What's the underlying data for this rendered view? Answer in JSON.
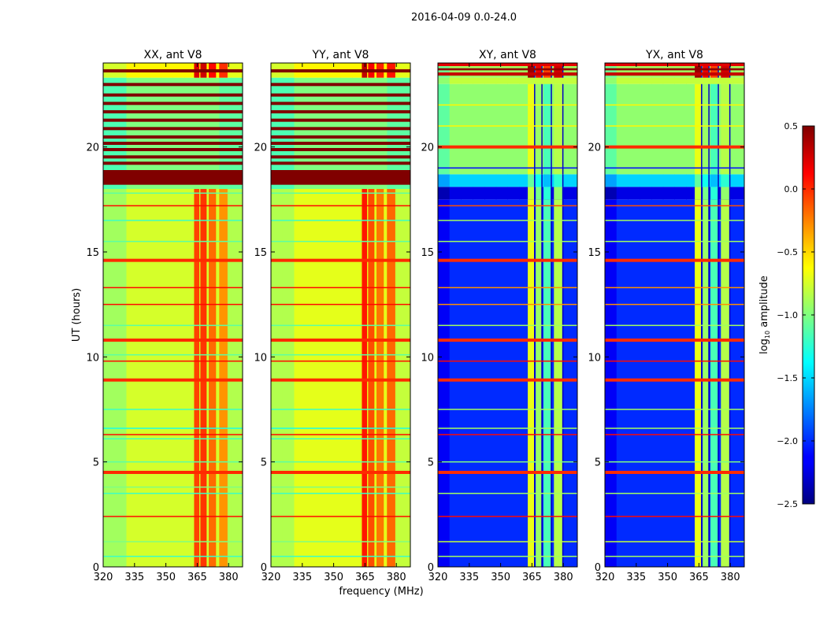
{
  "chart_data": {
    "type": "heatmap",
    "title": "2016-04-09 0.0-24.0",
    "xlabel": "frequency (MHz)",
    "ylabel": "UT (hours)",
    "xlim": [
      320,
      386.7
    ],
    "ylim": [
      0,
      24
    ],
    "xticks": [
      "320",
      "335",
      "350",
      "365",
      "380"
    ],
    "xtick_values": [
      320,
      335,
      350,
      365,
      380
    ],
    "yticks": [
      "0",
      "5",
      "10",
      "15",
      "20"
    ],
    "ytick_values": [
      0,
      5,
      10,
      15,
      20
    ],
    "colorbar": {
      "label_prefix": "log",
      "label_sub": "10",
      "label_suffix": " amplitude",
      "range": [
        -2.5,
        0.5
      ],
      "ticks": [
        "0.5",
        "0.0",
        "−0.5",
        "−1.0",
        "−1.5",
        "−2.0",
        "−2.5"
      ],
      "tick_values": [
        0.5,
        0.0,
        -0.5,
        -1.0,
        -1.5,
        -2.0,
        -2.5
      ],
      "colormap": "jet"
    },
    "panels": [
      {
        "title": "XX, ant V8",
        "kind": "parallel",
        "segments": [
          {
            "t": [
              0,
              18
            ],
            "base": -0.75,
            "band": -0.15
          },
          {
            "t": [
              18,
              23.3
            ],
            "base": -1.0,
            "band": -1.0
          },
          {
            "t": [
              23.3,
              24
            ],
            "base": -0.6,
            "band": 0.15
          }
        ],
        "bands": [
          [
            363.5,
            366,
            0.05
          ],
          [
            366.5,
            369.5,
            0.1
          ],
          [
            370.5,
            374,
            -0.1
          ],
          [
            375.5,
            379.5,
            -0.25
          ]
        ],
        "stripes": [
          [
            18.2,
            18.9,
            0.5
          ],
          [
            19.15,
            19.3,
            0.5
          ],
          [
            19.45,
            19.6,
            0.5
          ],
          [
            19.8,
            19.95,
            0.5
          ],
          [
            20.1,
            20.25,
            0.5
          ],
          [
            20.4,
            20.55,
            0.5
          ],
          [
            20.8,
            20.95,
            0.5
          ],
          [
            21.2,
            21.35,
            0.5
          ],
          [
            21.6,
            21.75,
            0.5
          ],
          [
            22.0,
            22.15,
            0.5
          ],
          [
            22.4,
            22.55,
            0.5
          ],
          [
            22.9,
            23.05,
            0.5
          ],
          [
            23.55,
            23.7,
            0.5
          ]
        ],
        "lines": [
          [
            0.5,
            -1.2
          ],
          [
            1.2,
            -1.0
          ],
          [
            2.4,
            0.1
          ],
          [
            3.5,
            -1.2
          ],
          [
            3.8,
            -1.0
          ],
          [
            4.5,
            0.0
          ],
          [
            5.0,
            -1.1
          ],
          [
            6.1,
            -1.2
          ],
          [
            6.3,
            0.1
          ],
          [
            6.6,
            -1.3
          ],
          [
            7.5,
            -1.2
          ],
          [
            8.9,
            0.0
          ],
          [
            9.8,
            0.1
          ],
          [
            10.1,
            -1.1
          ],
          [
            10.8,
            0.0
          ],
          [
            11.5,
            -1.1
          ],
          [
            12.5,
            0.1
          ],
          [
            13.3,
            0.1
          ],
          [
            14.6,
            0.0
          ],
          [
            15.5,
            -1.1
          ],
          [
            16.5,
            -1.2
          ],
          [
            17.2,
            0.1
          ],
          [
            17.8,
            -1.1
          ]
        ]
      },
      {
        "title": "YY, ant V8",
        "kind": "parallel",
        "segments": [
          {
            "t": [
              0,
              18
            ],
            "base": -0.7,
            "band": -0.1
          },
          {
            "t": [
              18,
              23.3
            ],
            "base": -1.0,
            "band": -1.0
          },
          {
            "t": [
              23.3,
              24
            ],
            "base": -0.6,
            "band": 0.15
          }
        ],
        "bands": [
          [
            363.5,
            366,
            0.15
          ],
          [
            366.5,
            369.5,
            -0.05
          ],
          [
            370.5,
            374,
            -0.2
          ],
          [
            375.5,
            379.5,
            -0.15
          ]
        ],
        "stripes": [
          [
            18.2,
            18.9,
            0.5
          ],
          [
            19.15,
            19.3,
            0.5
          ],
          [
            19.45,
            19.6,
            0.5
          ],
          [
            19.8,
            19.95,
            0.5
          ],
          [
            20.1,
            20.25,
            0.5
          ],
          [
            20.4,
            20.55,
            0.5
          ],
          [
            20.8,
            20.95,
            0.5
          ],
          [
            21.2,
            21.35,
            0.5
          ],
          [
            21.6,
            21.75,
            0.5
          ],
          [
            22.0,
            22.15,
            0.5
          ],
          [
            22.4,
            22.55,
            0.5
          ],
          [
            22.9,
            23.05,
            0.5
          ],
          [
            23.55,
            23.7,
            0.5
          ]
        ],
        "lines": [
          [
            0.5,
            -1.2
          ],
          [
            1.2,
            -1.0
          ],
          [
            2.4,
            0.1
          ],
          [
            3.5,
            -1.2
          ],
          [
            3.8,
            -1.0
          ],
          [
            4.5,
            0.0
          ],
          [
            5.0,
            -1.1
          ],
          [
            6.1,
            -1.2
          ],
          [
            6.3,
            0.1
          ],
          [
            6.6,
            -1.3
          ],
          [
            7.5,
            -1.2
          ],
          [
            8.9,
            0.0
          ],
          [
            9.8,
            0.1
          ],
          [
            10.1,
            -1.1
          ],
          [
            10.8,
            0.0
          ],
          [
            11.5,
            -1.1
          ],
          [
            12.5,
            0.1
          ],
          [
            13.3,
            0.1
          ],
          [
            14.6,
            0.0
          ],
          [
            15.5,
            -1.1
          ],
          [
            16.5,
            -1.2
          ],
          [
            17.2,
            0.1
          ],
          [
            17.8,
            -1.1
          ]
        ]
      },
      {
        "title": "XY, ant V8",
        "kind": "cross",
        "segments": [
          {
            "t": [
              0,
              17.5
            ],
            "base": -2.0,
            "band": -0.9
          },
          {
            "t": [
              17.5,
              18.1
            ],
            "base": -2.2,
            "band": -1.0
          },
          {
            "t": [
              18.1,
              18.7
            ],
            "base": -1.5,
            "band": -1.3
          },
          {
            "t": [
              18.7,
              23.0
            ],
            "base": -0.95,
            "band": -0.9
          },
          {
            "t": [
              23.0,
              23.3
            ],
            "base": -0.8,
            "band": -0.8
          },
          {
            "t": [
              23.3,
              24
            ],
            "base": -0.9,
            "band": 0.2
          }
        ],
        "bands": [
          [
            363,
            366,
            -0.7
          ],
          [
            366.8,
            369.5,
            -1.0
          ],
          [
            370.5,
            374,
            -1.3
          ],
          [
            375.5,
            379.5,
            -0.9
          ]
        ],
        "stripes": [
          [
            23.4,
            23.55,
            0.3
          ],
          [
            23.65,
            23.75,
            0.45
          ],
          [
            23.85,
            24,
            0.2
          ]
        ],
        "lines": [
          [
            0.5,
            -0.9
          ],
          [
            1.2,
            -0.8
          ],
          [
            2.4,
            0.1
          ],
          [
            3.5,
            -0.9
          ],
          [
            4.5,
            0.0
          ],
          [
            5.0,
            -1.0
          ],
          [
            6.3,
            0.1
          ],
          [
            6.6,
            -0.9
          ],
          [
            7.5,
            -0.9
          ],
          [
            8.9,
            0.0
          ],
          [
            9.8,
            0.1
          ],
          [
            10.8,
            0.0
          ],
          [
            11.5,
            -0.9
          ],
          [
            12.5,
            -0.3
          ],
          [
            13.3,
            -0.3
          ],
          [
            14.6,
            0.0
          ],
          [
            15.5,
            -0.9
          ],
          [
            16.5,
            -0.9
          ],
          [
            17.2,
            -0.1
          ],
          [
            19.0,
            -2.1
          ],
          [
            20.0,
            0.0
          ],
          [
            21.0,
            -0.6
          ],
          [
            22.0,
            -0.6
          ]
        ]
      },
      {
        "title": "YX, ant V8",
        "kind": "cross",
        "segments": [
          {
            "t": [
              0,
              17.5
            ],
            "base": -2.0,
            "band": -0.9
          },
          {
            "t": [
              17.5,
              18.1
            ],
            "base": -2.2,
            "band": -1.0
          },
          {
            "t": [
              18.1,
              18.7
            ],
            "base": -1.5,
            "band": -1.3
          },
          {
            "t": [
              18.7,
              23.0
            ],
            "base": -0.95,
            "band": -0.9
          },
          {
            "t": [
              23.0,
              23.3
            ],
            "base": -0.8,
            "band": -0.8
          },
          {
            "t": [
              23.3,
              24
            ],
            "base": -0.9,
            "band": 0.2
          }
        ],
        "bands": [
          [
            363,
            366,
            -0.7
          ],
          [
            366.8,
            369.5,
            -1.0
          ],
          [
            370.5,
            374,
            -1.3
          ],
          [
            375.5,
            379.5,
            -0.9
          ]
        ],
        "stripes": [
          [
            23.4,
            23.55,
            0.3
          ],
          [
            23.65,
            23.75,
            0.45
          ],
          [
            23.85,
            24,
            0.2
          ]
        ],
        "lines": [
          [
            0.5,
            -0.9
          ],
          [
            1.2,
            -0.8
          ],
          [
            2.4,
            0.1
          ],
          [
            3.5,
            -0.9
          ],
          [
            4.5,
            0.0
          ],
          [
            5.0,
            -1.0
          ],
          [
            6.3,
            0.1
          ],
          [
            6.6,
            -0.9
          ],
          [
            7.5,
            -0.9
          ],
          [
            8.9,
            0.0
          ],
          [
            9.8,
            0.1
          ],
          [
            10.8,
            0.0
          ],
          [
            11.5,
            -0.9
          ],
          [
            12.5,
            -0.3
          ],
          [
            13.3,
            -0.3
          ],
          [
            14.6,
            0.0
          ],
          [
            15.5,
            -0.9
          ],
          [
            16.5,
            -0.9
          ],
          [
            17.2,
            -0.1
          ],
          [
            19.0,
            -2.1
          ],
          [
            20.0,
            0.0
          ],
          [
            21.0,
            -0.6
          ],
          [
            22.0,
            -0.6
          ]
        ]
      }
    ]
  }
}
